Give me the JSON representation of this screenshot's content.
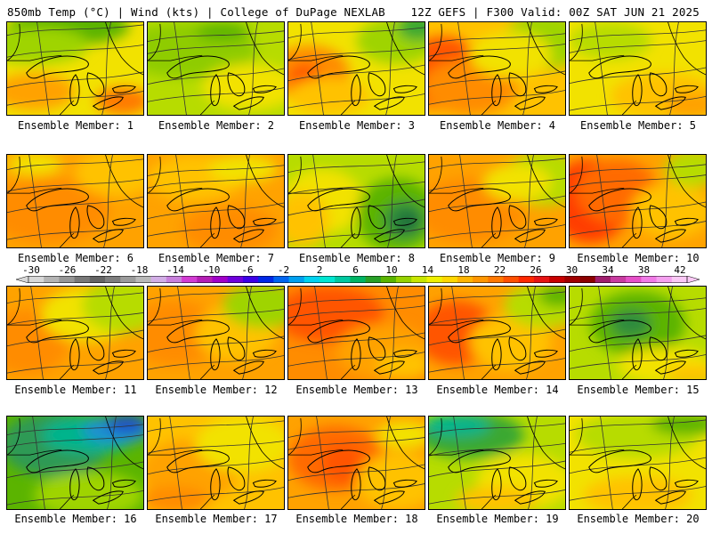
{
  "header": {
    "left": "850mb Temp (°C) | Wind (kts) | College of DuPage NEXLAB",
    "right": "12Z GEFS | F300 Valid: 00Z SAT JUN 21 2025"
  },
  "members": [
    {
      "label": "Ensemble Member: 1",
      "bg": "#f2e200",
      "blobs": [
        [
          "#5bb400",
          0.45,
          0.05,
          0.45,
          0.2
        ],
        [
          "#9fd400",
          0.2,
          0.25,
          0.4,
          0.2
        ],
        [
          "#ffa200",
          0.2,
          0.75,
          0.3,
          0.2
        ],
        [
          "#ff7a00",
          0.85,
          0.85,
          0.2,
          0.15
        ]
      ]
    },
    {
      "label": "Ensemble Member: 2",
      "bg": "#b7dc00",
      "blobs": [
        [
          "#8fcc00",
          0.3,
          0.3,
          0.5,
          0.3
        ],
        [
          "#f2e200",
          0.75,
          0.7,
          0.35,
          0.25
        ],
        [
          "#5bb400",
          0.55,
          0.1,
          0.2,
          0.1
        ]
      ]
    },
    {
      "label": "Ensemble Member: 3",
      "bg": "#f2e200",
      "blobs": [
        [
          "#ff8c00",
          0.15,
          0.55,
          0.3,
          0.3
        ],
        [
          "#ff5500",
          0.12,
          0.6,
          0.12,
          0.15
        ],
        [
          "#ffc200",
          0.3,
          0.8,
          0.3,
          0.2
        ],
        [
          "#9fd400",
          0.8,
          0.2,
          0.3,
          0.25
        ],
        [
          "#3aa832",
          0.95,
          0.05,
          0.15,
          0.15
        ]
      ]
    },
    {
      "label": "Ensemble Member: 4",
      "bg": "#ffc200",
      "blobs": [
        [
          "#ff5500",
          0.1,
          0.55,
          0.3,
          0.4
        ],
        [
          "#ff8c00",
          0.3,
          0.7,
          0.35,
          0.3
        ],
        [
          "#9fd400",
          0.85,
          0.2,
          0.3,
          0.3
        ],
        [
          "#f2e200",
          0.6,
          0.35,
          0.3,
          0.25
        ]
      ]
    },
    {
      "label": "Ensemble Member: 5",
      "bg": "#f2e200",
      "blobs": [
        [
          "#ffc200",
          0.7,
          0.8,
          0.4,
          0.25
        ],
        [
          "#b7dc00",
          0.3,
          0.2,
          0.3,
          0.2
        ],
        [
          "#ffa200",
          0.9,
          0.9,
          0.2,
          0.15
        ]
      ]
    },
    {
      "label": "Ensemble Member: 6",
      "bg": "#ffa200",
      "blobs": [
        [
          "#ff8c00",
          0.3,
          0.6,
          0.45,
          0.35
        ],
        [
          "#ffc200",
          0.8,
          0.2,
          0.3,
          0.25
        ],
        [
          "#f2e200",
          0.2,
          0.1,
          0.2,
          0.12
        ]
      ]
    },
    {
      "label": "Ensemble Member: 7",
      "bg": "#ffa200",
      "blobs": [
        [
          "#ffc200",
          0.35,
          0.25,
          0.35,
          0.25
        ],
        [
          "#f2e200",
          0.7,
          0.15,
          0.25,
          0.15
        ],
        [
          "#ff8c00",
          0.6,
          0.8,
          0.35,
          0.25
        ]
      ]
    },
    {
      "label": "Ensemble Member: 8",
      "bg": "#b7dc00",
      "blobs": [
        [
          "#f2e200",
          0.25,
          0.5,
          0.3,
          0.35
        ],
        [
          "#ffc200",
          0.1,
          0.7,
          0.2,
          0.3
        ],
        [
          "#5bb400",
          0.8,
          0.65,
          0.3,
          0.4
        ],
        [
          "#2e8b3c",
          0.85,
          0.7,
          0.15,
          0.2
        ],
        [
          "#1f6b3a",
          0.88,
          0.72,
          0.07,
          0.1
        ]
      ]
    },
    {
      "label": "Ensemble Member: 9",
      "bg": "#ffa200",
      "blobs": [
        [
          "#ff8c00",
          0.3,
          0.6,
          0.4,
          0.35
        ],
        [
          "#b7dc00",
          0.85,
          0.25,
          0.3,
          0.3
        ],
        [
          "#f2e200",
          0.65,
          0.3,
          0.25,
          0.2
        ]
      ]
    },
    {
      "label": "Ensemble Member: 10",
      "bg": "#ffa200",
      "blobs": [
        [
          "#ff3c00",
          0.15,
          0.5,
          0.3,
          0.45
        ],
        [
          "#ff6a00",
          0.35,
          0.4,
          0.3,
          0.35
        ],
        [
          "#ffc200",
          0.75,
          0.6,
          0.3,
          0.3
        ],
        [
          "#b7dc00",
          0.9,
          0.15,
          0.2,
          0.2
        ]
      ]
    },
    {
      "label": "Ensemble Member: 11",
      "bg": "#ffa200",
      "blobs": [
        [
          "#ff8c00",
          0.15,
          0.6,
          0.3,
          0.35
        ],
        [
          "#f2e200",
          0.6,
          0.3,
          0.35,
          0.3
        ],
        [
          "#b7dc00",
          0.85,
          0.2,
          0.3,
          0.3
        ]
      ]
    },
    {
      "label": "Ensemble Member: 12",
      "bg": "#ffa200",
      "blobs": [
        [
          "#ff8c00",
          0.2,
          0.5,
          0.35,
          0.35
        ],
        [
          "#ffc200",
          0.65,
          0.5,
          0.3,
          0.3
        ],
        [
          "#9fd400",
          0.85,
          0.2,
          0.3,
          0.25
        ]
      ]
    },
    {
      "label": "Ensemble Member: 13",
      "bg": "#ff8c00",
      "blobs": [
        [
          "#ff5500",
          0.3,
          0.3,
          0.4,
          0.3
        ],
        [
          "#ffa200",
          0.7,
          0.7,
          0.35,
          0.3
        ],
        [
          "#ffc200",
          0.85,
          0.85,
          0.2,
          0.15
        ]
      ]
    },
    {
      "label": "Ensemble Member: 14",
      "bg": "#ffa200",
      "blobs": [
        [
          "#ff5500",
          0.2,
          0.5,
          0.3,
          0.35
        ],
        [
          "#ffc200",
          0.6,
          0.6,
          0.3,
          0.3
        ],
        [
          "#b7dc00",
          0.85,
          0.2,
          0.3,
          0.25
        ],
        [
          "#5bb400",
          0.95,
          0.1,
          0.15,
          0.12
        ]
      ]
    },
    {
      "label": "Ensemble Member: 15",
      "bg": "#b7dc00",
      "blobs": [
        [
          "#5bb400",
          0.5,
          0.4,
          0.35,
          0.35
        ],
        [
          "#2e8b3c",
          0.45,
          0.4,
          0.15,
          0.15
        ],
        [
          "#f2e200",
          0.7,
          0.85,
          0.35,
          0.2
        ],
        [
          "#ffc200",
          0.9,
          0.95,
          0.2,
          0.1
        ]
      ]
    },
    {
      "label": "Ensemble Member: 16",
      "bg": "#5bb400",
      "blobs": [
        [
          "#2e9a55",
          0.35,
          0.3,
          0.4,
          0.35
        ],
        [
          "#00b48c",
          0.6,
          0.2,
          0.35,
          0.2
        ],
        [
          "#1e90d0",
          0.8,
          0.15,
          0.25,
          0.15
        ],
        [
          "#1e50c8",
          0.88,
          0.08,
          0.15,
          0.1
        ],
        [
          "#9fd400",
          0.6,
          0.85,
          0.4,
          0.25
        ]
      ]
    },
    {
      "label": "Ensemble Member: 17",
      "bg": "#ffc200",
      "blobs": [
        [
          "#ffa200",
          0.3,
          0.6,
          0.35,
          0.35
        ],
        [
          "#f2e200",
          0.7,
          0.3,
          0.35,
          0.3
        ],
        [
          "#ff8c00",
          0.2,
          0.9,
          0.25,
          0.15
        ]
      ]
    },
    {
      "label": "Ensemble Member: 18",
      "bg": "#ffa200",
      "blobs": [
        [
          "#ff6a00",
          0.35,
          0.45,
          0.35,
          0.35
        ],
        [
          "#ff5500",
          0.4,
          0.5,
          0.15,
          0.2
        ],
        [
          "#ffc200",
          0.8,
          0.7,
          0.3,
          0.3
        ],
        [
          "#f2e200",
          0.85,
          0.2,
          0.2,
          0.15
        ]
      ]
    },
    {
      "label": "Ensemble Member: 19",
      "bg": "#b7dc00",
      "blobs": [
        [
          "#3aa832",
          0.3,
          0.2,
          0.4,
          0.25
        ],
        [
          "#00b48c",
          0.2,
          0.1,
          0.25,
          0.12
        ],
        [
          "#f2e200",
          0.7,
          0.7,
          0.35,
          0.3
        ],
        [
          "#ffc200",
          0.5,
          0.9,
          0.3,
          0.15
        ]
      ]
    },
    {
      "label": "Ensemble Member: 20",
      "bg": "#f2e200",
      "blobs": [
        [
          "#b7dc00",
          0.5,
          0.2,
          0.45,
          0.25
        ],
        [
          "#5bb400",
          0.85,
          0.08,
          0.25,
          0.12
        ],
        [
          "#ffc200",
          0.5,
          0.85,
          0.4,
          0.2
        ]
      ]
    }
  ],
  "colorbar": {
    "ticks": [
      "-30",
      "-26",
      "-22",
      "-18",
      "-14",
      "-10",
      "-6",
      "-2",
      "2",
      "6",
      "10",
      "14",
      "18",
      "22",
      "26",
      "30",
      "34",
      "38",
      "42"
    ],
    "colors": [
      "#d8d8d8",
      "#b4b4b4",
      "#969696",
      "#787878",
      "#646464",
      "#7d7d7d",
      "#9b9b9b",
      "#b9b9b9",
      "#d2aee6",
      "#c880dc",
      "#d23cd2",
      "#b41eb4",
      "#a000c8",
      "#6e00dc",
      "#3c00e6",
      "#0028e6",
      "#0064f0",
      "#00a0f0",
      "#00d2f0",
      "#00e6d2",
      "#00c8a0",
      "#00b464",
      "#28a028",
      "#5ab400",
      "#96d200",
      "#c8e600",
      "#f0f000",
      "#ffd700",
      "#ffb400",
      "#ff9600",
      "#ff7800",
      "#ff5000",
      "#ff2800",
      "#e61414",
      "#c80000",
      "#a00000",
      "#8c0000",
      "#a01e6e",
      "#c83ca0",
      "#e650c8",
      "#f07ae6",
      "#f5a0f0",
      "#fac8f5"
    ]
  }
}
